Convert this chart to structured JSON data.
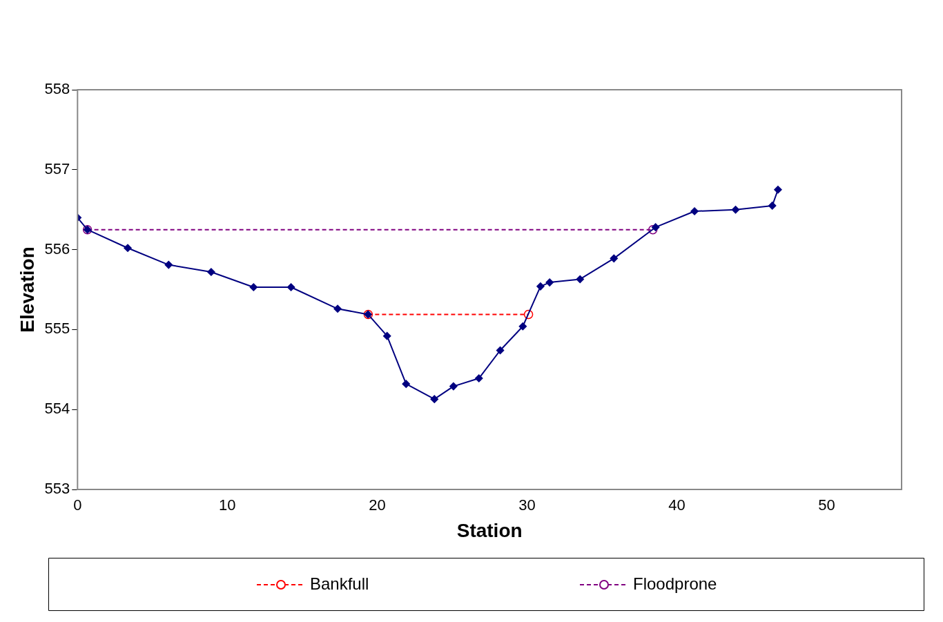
{
  "chart_data": {
    "type": "line",
    "xlabel": "Station",
    "ylabel": "Elevation",
    "xlim": [
      0,
      55
    ],
    "xticks": [
      0,
      10,
      20,
      30,
      40,
      50
    ],
    "ylim": [
      553,
      558
    ],
    "yticks": [
      553,
      554,
      555,
      556,
      557,
      558
    ],
    "grid": false,
    "legend": "bottom",
    "series": [
      {
        "color": "#000080",
        "marker": "diamond",
        "line_style": "solid",
        "x": [
          0,
          0.66,
          3.35,
          6.08,
          8.92,
          11.75,
          14.25,
          17.36,
          19.39,
          20.66,
          21.93,
          23.82,
          25.09,
          26.79,
          28.21,
          29.72,
          30.9,
          31.51,
          33.54,
          35.8,
          38.58,
          41.18,
          43.92,
          46.37,
          46.75
        ],
        "values": [
          556.4,
          556.25,
          556.02,
          555.81,
          555.72,
          555.53,
          555.53,
          555.26,
          555.19,
          554.92,
          554.32,
          554.13,
          554.29,
          554.39,
          554.74,
          555.04,
          555.54,
          555.59,
          555.63,
          555.89,
          556.28,
          556.48,
          556.5,
          556.55,
          556.75
        ]
      },
      {
        "name": "Bankfull",
        "color": "#ff0000",
        "marker": "circle",
        "line_style": "dashed",
        "x": [
          19.4,
          30.1
        ],
        "values": [
          555.19,
          555.19
        ]
      },
      {
        "name": "Floodprone",
        "color": "#800080",
        "marker": "circle",
        "line_style": "dashed",
        "x": [
          0.66,
          38.4
        ],
        "values": [
          556.25,
          556.25
        ]
      }
    ]
  }
}
